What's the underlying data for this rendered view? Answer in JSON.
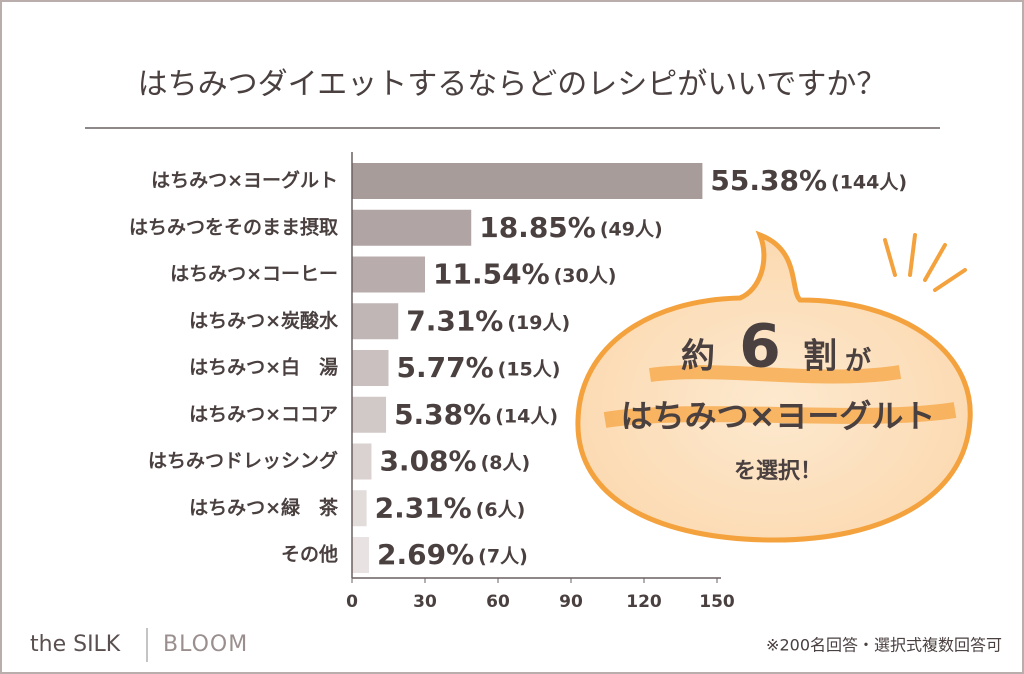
{
  "chart_data": {
    "type": "bar",
    "orientation": "horizontal",
    "title": "はちみつダイエットするならどのレシピがいいですか？",
    "categories": [
      "はちみつ×ヨーグルト",
      "はちみつをそのまま摂取",
      "はちみつ×コーヒー",
      "はちみつ×炭酸水",
      "はちみつ×白　湯",
      "はちみつ×ココア",
      "はちみつドレッシング",
      "はちみつ×緑　茶",
      "その他"
    ],
    "values": [
      144,
      49,
      30,
      19,
      15,
      14,
      8,
      6,
      7
    ],
    "value_labels": [
      "(144人)",
      "(49人)",
      "(30人)",
      "(19人)",
      "(15人)",
      "(14人)",
      "(8人)",
      "(6人)",
      "(7人)"
    ],
    "percent_labels": [
      "55.38%",
      "18.85%",
      "11.54%",
      "7.31%",
      "5.77%",
      "5.38%",
      "3.08%",
      "2.31%",
      "2.69%"
    ],
    "colors": [
      "#a89c9b",
      "#b0a5a4",
      "#b8adac",
      "#c0b6b5",
      "#c9c0bf",
      "#d1c9c8",
      "#d9d2d1",
      "#e2dcdb",
      "#e8e3e2"
    ],
    "xlim": [
      0,
      150
    ],
    "xticks": [
      0,
      30,
      60,
      90,
      120,
      150
    ],
    "annotation": {
      "line1": [
        "約",
        "6",
        "割",
        "が"
      ],
      "line2": "はちみつ×ヨーグルト",
      "line3": "を選択！"
    },
    "brand": {
      "left": "the SILK",
      "right": "BLOOM"
    },
    "footnote": "※200名回答・選択式複数回答可"
  }
}
